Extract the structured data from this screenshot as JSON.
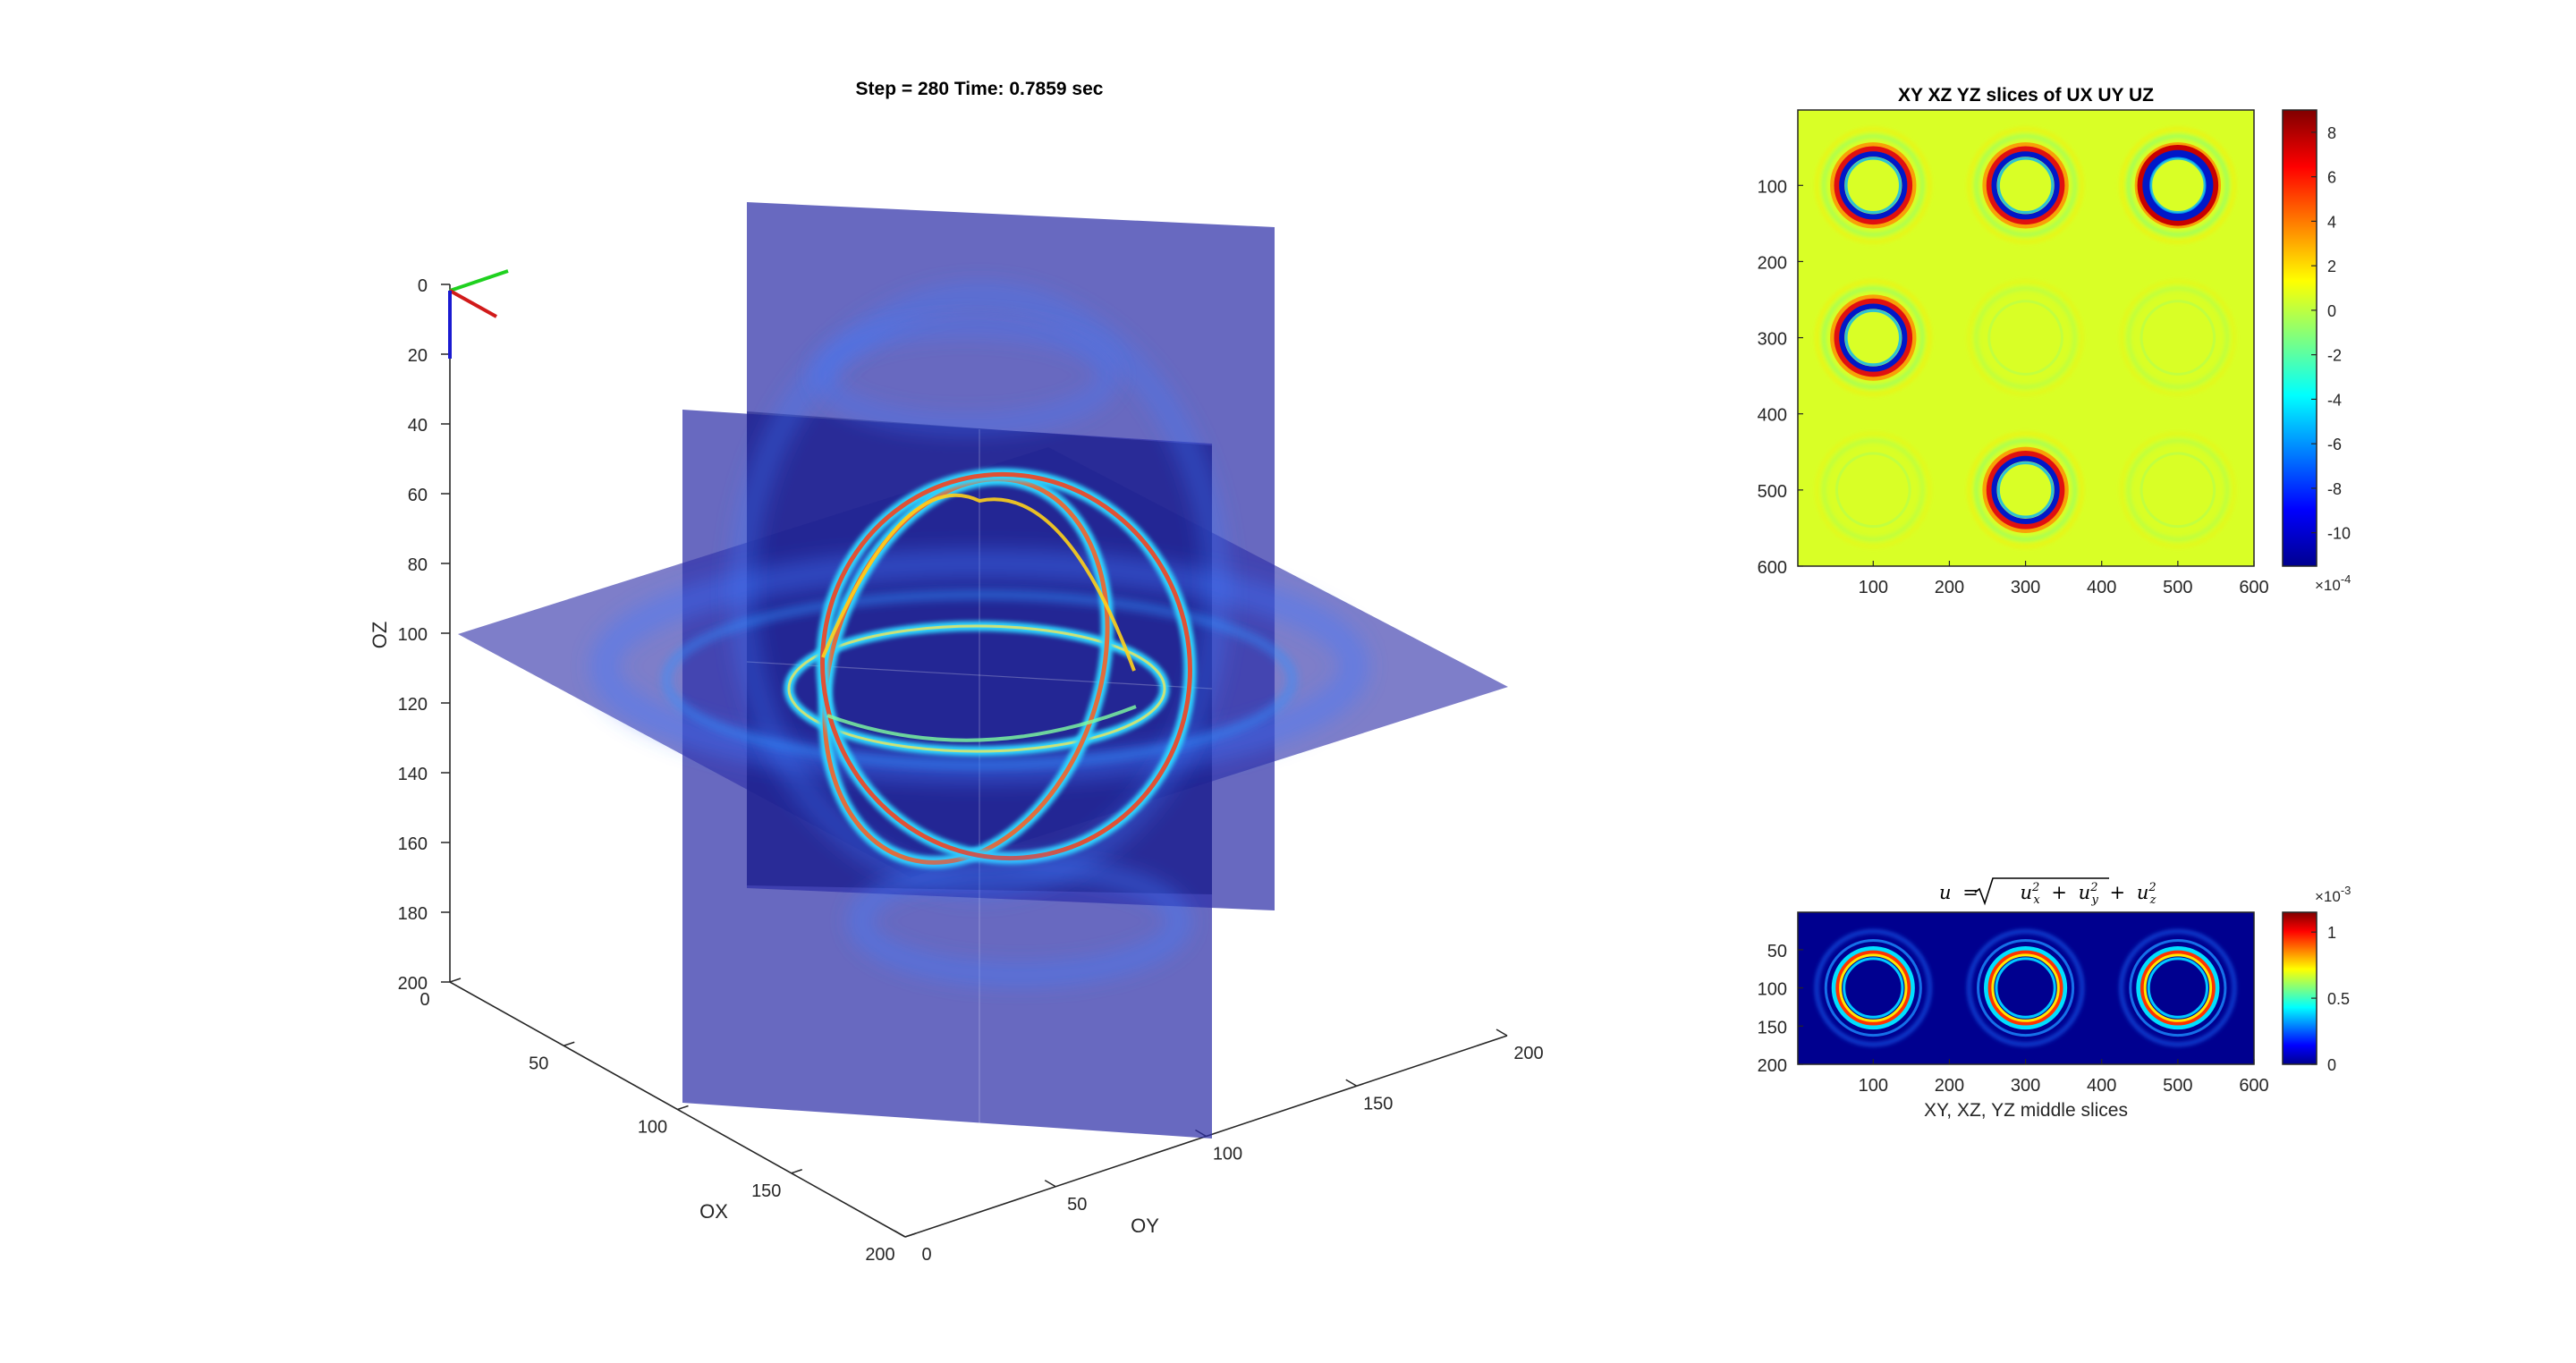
{
  "chart_data": [
    {
      "type": "volume-slices-3d",
      "title": "Step = 280 Time: 0.7859 sec",
      "xlabel": "OX",
      "ylabel": "OY",
      "zlabel": "OZ",
      "xlim": [
        0,
        200
      ],
      "ylim": [
        0,
        200
      ],
      "zlim": [
        0,
        200
      ],
      "x_ticks": [
        "0",
        "50",
        "100",
        "150",
        "200"
      ],
      "y_ticks": [
        "0",
        "50",
        "100",
        "150",
        "200"
      ],
      "z_ticks": [
        "0",
        "20",
        "40",
        "60",
        "80",
        "100",
        "120",
        "140",
        "160",
        "180",
        "200"
      ],
      "z_reversed": true,
      "slice_planes": [
        "XY",
        "XZ",
        "YZ"
      ],
      "slice_position": 100,
      "orientation_triad": [
        "red",
        "green",
        "blue"
      ],
      "colors": {
        "plane": "#2b2ea6",
        "wave_peak": "#ff2a00",
        "wave_mid": "#00c8ff"
      }
    },
    {
      "type": "heatmap",
      "title": "XY XZ YZ slices of UX UY UZ",
      "xlim": [
        1,
        600
      ],
      "ylim": [
        1,
        600
      ],
      "x_ticks": [
        "100",
        "200",
        "300",
        "400",
        "500",
        "600"
      ],
      "y_ticks": [
        "100",
        "200",
        "300",
        "400",
        "500",
        "600"
      ],
      "colorbar": {
        "ticks": [
          "8",
          "6",
          "4",
          "2",
          "0",
          "-2",
          "-4",
          "-6",
          "-8",
          "-10"
        ],
        "tick_values": [
          8,
          6,
          4,
          2,
          0,
          -2,
          -4,
          -6,
          -8,
          -10
        ],
        "range": [
          -11.5,
          9
        ],
        "exponent_base": "×10",
        "exponent_power": "-4"
      },
      "grid": {
        "rows": [
          "UX",
          "UY",
          "UZ"
        ],
        "cols": [
          "XY",
          "XZ",
          "YZ"
        ],
        "amplitude": [
          [
            0.75,
            0.75,
            1.0
          ],
          [
            0.85,
            0.1,
            0.1
          ],
          [
            0.08,
            0.85,
            0.1
          ]
        ]
      },
      "colormap": "jet",
      "background_value": 0
    },
    {
      "type": "heatmap",
      "title_math": {
        "lhs": "u",
        "eq": "=",
        "terms": [
          {
            "base": "u",
            "sub": "x",
            "sup": "2"
          },
          {
            "base": "u",
            "sub": "y",
            "sup": "2"
          },
          {
            "base": "u",
            "sub": "z",
            "sup": "2"
          }
        ],
        "plus": "+"
      },
      "xlabel": "XY, XZ, YZ middle slices",
      "xlim": [
        1,
        600
      ],
      "ylim": [
        1,
        200
      ],
      "x_ticks": [
        "100",
        "200",
        "300",
        "400",
        "500",
        "600"
      ],
      "y_ticks": [
        "50",
        "100",
        "150",
        "200"
      ],
      "colorbar": {
        "ticks": [
          "1",
          "0.5",
          "0"
        ],
        "tick_values": [
          1,
          0.5,
          0
        ],
        "range": [
          0,
          1.15
        ],
        "exponent_base": "×10",
        "exponent_power": "-3"
      },
      "panels": [
        "XY",
        "XZ",
        "YZ"
      ],
      "colormap": "jet"
    }
  ]
}
